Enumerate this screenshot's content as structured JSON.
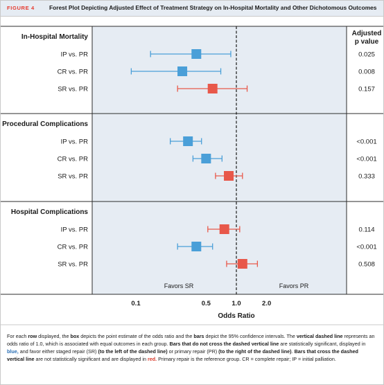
{
  "figure": {
    "label": "FIGURE 4",
    "title": "Forest Plot Depicting Adjusted Effect of Treatment Strategy on In-Hospital Mortality and Other Dichotomous Outcomes"
  },
  "colors": {
    "significant": "#4a9fd8",
    "not_significant": "#e8584a",
    "panel_bg": "#e6ecf3",
    "header_bg": "#e6ecf3"
  },
  "chart_data": {
    "type": "forest",
    "xlabel": "Odds Ratio",
    "x_scale": "log",
    "xlim": [
      0.07,
      2.8
    ],
    "x_ticks": [
      {
        "value": 0.1,
        "label": "0.1"
      },
      {
        "value": 0.5,
        "label": "0.5"
      },
      {
        "value": 1.0,
        "label": "1.0"
      },
      {
        "value": 2.0,
        "label": "2.0"
      }
    ],
    "reference_line": 1.0,
    "pvalue_header": [
      "Adjusted",
      "p value"
    ],
    "favors_left": "Favors SR",
    "favors_right": "Favors PR",
    "groups": [
      {
        "title": "In-Hospital Mortality",
        "rows": [
          {
            "label": "IP vs. PR",
            "or": 0.4,
            "lo": 0.14,
            "hi": 0.88,
            "p": "0.025",
            "significant": true
          },
          {
            "label": "CR vs. PR",
            "or": 0.29,
            "lo": 0.09,
            "hi": 0.7,
            "p": "0.008",
            "significant": true
          },
          {
            "label": "SR vs. PR",
            "or": 0.58,
            "lo": 0.26,
            "hi": 1.28,
            "p": "0.157",
            "significant": false
          }
        ]
      },
      {
        "title": "Procedural Complications",
        "rows": [
          {
            "label": "IP vs. PR",
            "or": 0.33,
            "lo": 0.22,
            "hi": 0.45,
            "p": "<0.001",
            "significant": true
          },
          {
            "label": "CR vs. PR",
            "or": 0.5,
            "lo": 0.37,
            "hi": 0.72,
            "p": "<0.001",
            "significant": true
          },
          {
            "label": "SR vs. PR",
            "or": 0.84,
            "lo": 0.62,
            "hi": 1.15,
            "p": "0.333",
            "significant": false
          }
        ]
      },
      {
        "title": "Hospital Complications",
        "rows": [
          {
            "label": "IP vs. PR",
            "or": 0.76,
            "lo": 0.52,
            "hi": 1.08,
            "p": "0.114",
            "significant": false
          },
          {
            "label": "CR vs. PR",
            "or": 0.4,
            "lo": 0.26,
            "hi": 0.58,
            "p": "<0.001",
            "significant": true
          },
          {
            "label": "SR vs. PR",
            "or": 1.15,
            "lo": 0.8,
            "hi": 1.62,
            "p": "0.508",
            "significant": false
          }
        ]
      }
    ]
  },
  "caption": {
    "s1": "For each ",
    "s2": "row",
    "s3": " displayed, the ",
    "s4": "box",
    "s5": " depicts the point estimate of the odds ratio and the ",
    "s6": "bars",
    "s7": " depict the 95% confidence intervals. The ",
    "s8": "vertical dashed line",
    "s9": " represents an odds ratio of 1.0, which is associated with equal outcomes in each group. ",
    "s10": "Bars that do not cross the dashed vertical line",
    "s11": " are statistically significant, displayed in ",
    "s12": "blue,",
    "s13": " and favor either staged repair (SR) ",
    "s14": "(to the left of the dashed line)",
    "s15": " or primary repair (PR) ",
    "s16": "(to the right of the dashed line)",
    "s17": ". ",
    "s18": "Bars that cross the dashed vertical line",
    "s19": " are not statistically significant and are displayed in ",
    "s20": "red.",
    "s21": " Primary repair is the reference group. CR = complete repair; IP = initial palliation."
  }
}
